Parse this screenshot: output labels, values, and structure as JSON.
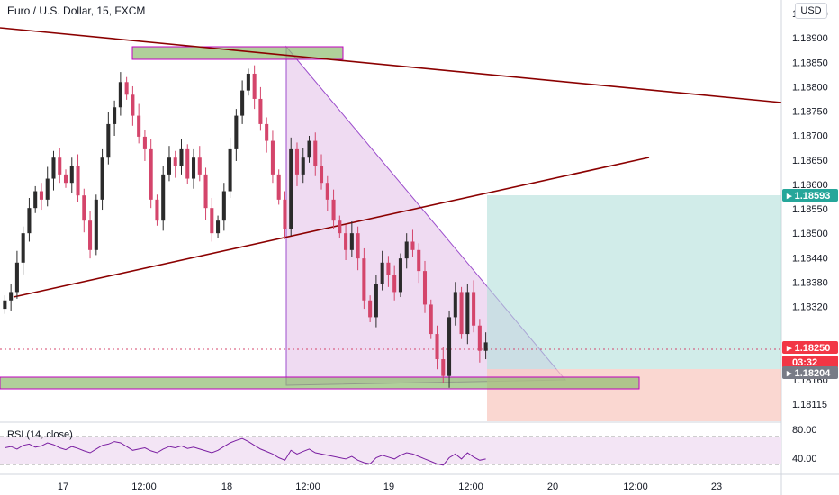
{
  "header": {
    "title": "Euro / U.S. Dollar, 15, FXCM",
    "currency_button": "USD"
  },
  "rsi": {
    "title": "RSI (14, close)",
    "levels": [
      "80.00",
      "40.00"
    ]
  },
  "colors": {
    "bullish": "#2b2b2b",
    "bearish": "#d4456b",
    "trendline": "#8b0000",
    "wedge_fill": "#e1bee7",
    "profit_zone": "#b2dfdb",
    "loss_zone": "#f8c9c2",
    "zone_green": "#8fbc6f",
    "rsi_line": "#7b1fa2",
    "rsi_band": "#f3e5f5"
  },
  "chart_data": {
    "type": "candlestick",
    "symbol": "EURUSD",
    "timeframe": "15",
    "y_ticks": [
      "1.18950",
      "1.18900",
      "1.18850",
      "1.18800",
      "1.18750",
      "1.18700",
      "1.18650",
      "1.18600",
      "1.18550",
      "1.18500",
      "1.18440",
      "1.18380",
      "1.18320",
      "1.18250",
      "1.18204",
      "1.18160",
      "1.18115"
    ],
    "x_ticks": [
      "17",
      "12:00",
      "18",
      "12:00",
      "19",
      "12:00",
      "20",
      "12:00",
      "23"
    ],
    "price_labels": [
      {
        "label": "1.18593",
        "value": 1.18593,
        "kind": "target"
      },
      {
        "label": "1.18250",
        "value": 1.1825,
        "kind": "current"
      },
      {
        "label": "03:32",
        "value": 1.18227,
        "kind": "countdown"
      },
      {
        "label": "1.18204",
        "value": 1.18204,
        "kind": "stop"
      }
    ],
    "visible_range": [
      1.181,
      1.1899
    ],
    "close_series": [
      1.1836,
      1.1838,
      1.1845,
      1.1852,
      1.1858,
      1.1862,
      1.186,
      1.1865,
      1.187,
      1.1866,
      1.1864,
      1.1868,
      1.1861,
      1.1855,
      1.1848,
      1.186,
      1.187,
      1.1878,
      1.1882,
      1.1888,
      1.1885,
      1.188,
      1.1875,
      1.1872,
      1.186,
      1.1855,
      1.1866,
      1.187,
      1.1868,
      1.1872,
      1.1865,
      1.187,
      1.1866,
      1.1858,
      1.1852,
      1.1855,
      1.1862,
      1.1872,
      1.188,
      1.1886,
      1.189,
      1.1884,
      1.1878,
      1.1874,
      1.1866,
      1.186,
      1.1853,
      1.1872,
      1.1866,
      1.187,
      1.1874,
      1.1868,
      1.1864,
      1.186,
      1.1855,
      1.1852,
      1.1848,
      1.1852,
      1.1846,
      1.1836,
      1.1832,
      1.184,
      1.1845,
      1.1842,
      1.1838,
      1.1846,
      1.185,
      1.1848,
      1.1843,
      1.1835,
      1.1828,
      1.1822,
      1.1818,
      1.1832,
      1.1838,
      1.1828,
      1.1838,
      1.183,
      1.1824,
      1.1826
    ],
    "rsi_range": [
      20,
      100
    ],
    "rsi_series": [
      60,
      62,
      58,
      64,
      66,
      61,
      63,
      68,
      65,
      60,
      57,
      62,
      59,
      55,
      52,
      58,
      64,
      66,
      70,
      68,
      62,
      56,
      58,
      60,
      55,
      52,
      58,
      62,
      60,
      63,
      59,
      61,
      58,
      55,
      52,
      56,
      62,
      68,
      72,
      75,
      70,
      64,
      58,
      54,
      50,
      44,
      40,
      56,
      50,
      54,
      58,
      52,
      50,
      48,
      46,
      44,
      42,
      46,
      40,
      36,
      34,
      44,
      48,
      45,
      42,
      48,
      52,
      50,
      46,
      42,
      38,
      34,
      32,
      44,
      50,
      42,
      52,
      45,
      40,
      42
    ]
  }
}
